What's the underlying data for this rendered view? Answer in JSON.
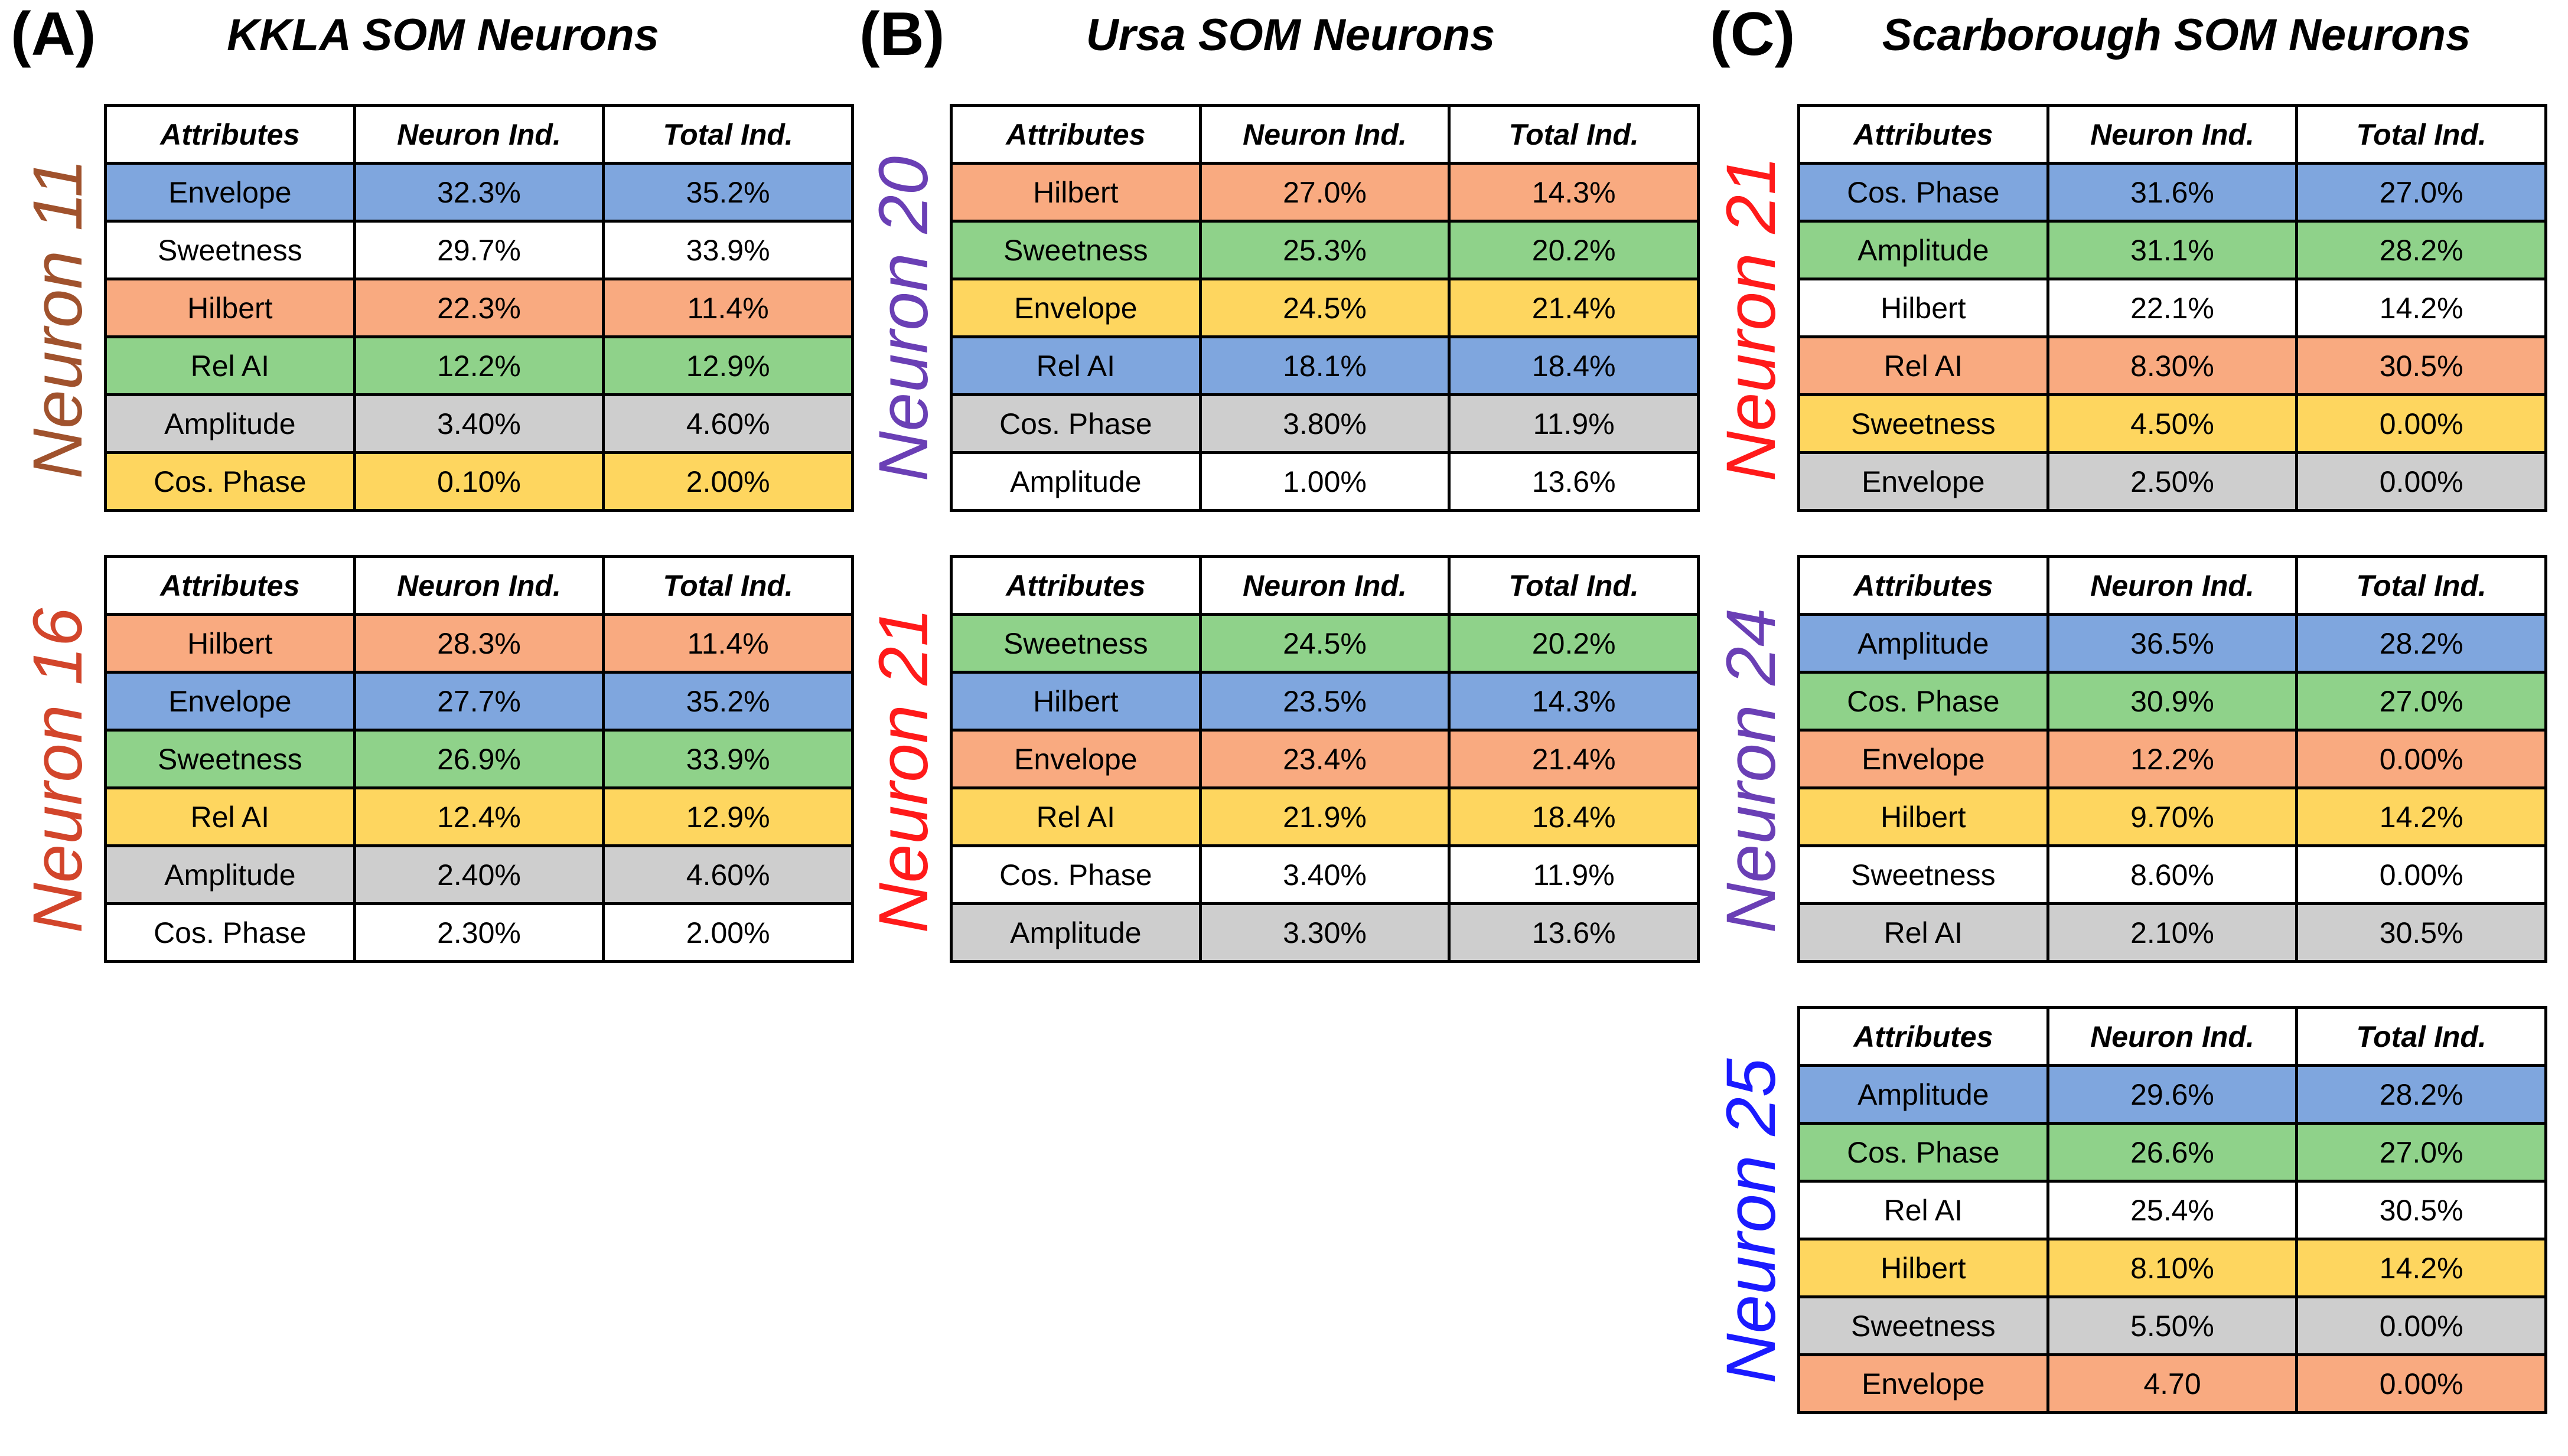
{
  "colors": {
    "blue": "#7fa6de",
    "green": "#8fd28a",
    "orange": "#f9aa80",
    "yellow": "#fed65f",
    "gray": "#cecece",
    "white": "#ffffff"
  },
  "panels": [
    {
      "letter": "(A)",
      "title": "KKLA SOM Neurons",
      "tables": [
        {
          "neuron": "Neuron 11",
          "neuron_color": "#a0522d",
          "headers": [
            "Attributes",
            "Neuron Ind.",
            "Total Ind."
          ],
          "rows": [
            {
              "attribute": "Envelope",
              "neuron_ind": "32.3%",
              "total_ind": "35.2%",
              "color": "blue"
            },
            {
              "attribute": "Sweetness",
              "neuron_ind": "29.7%",
              "total_ind": "33.9%",
              "color": "white"
            },
            {
              "attribute": "Hilbert",
              "neuron_ind": "22.3%",
              "total_ind": "11.4%",
              "color": "orange"
            },
            {
              "attribute": "Rel AI",
              "neuron_ind": "12.2%",
              "total_ind": "12.9%",
              "color": "green"
            },
            {
              "attribute": "Amplitude",
              "neuron_ind": "3.40%",
              "total_ind": "4.60%",
              "color": "gray"
            },
            {
              "attribute": "Cos. Phase",
              "neuron_ind": "0.10%",
              "total_ind": "2.00%",
              "color": "yellow"
            }
          ]
        },
        {
          "neuron": "Neuron 16",
          "neuron_color": "#d2452b",
          "headers": [
            "Attributes",
            "Neuron Ind.",
            "Total Ind."
          ],
          "rows": [
            {
              "attribute": "Hilbert",
              "neuron_ind": "28.3%",
              "total_ind": "11.4%",
              "color": "orange"
            },
            {
              "attribute": "Envelope",
              "neuron_ind": "27.7%",
              "total_ind": "35.2%",
              "color": "blue"
            },
            {
              "attribute": "Sweetness",
              "neuron_ind": "26.9%",
              "total_ind": "33.9%",
              "color": "green"
            },
            {
              "attribute": "Rel AI",
              "neuron_ind": "12.4%",
              "total_ind": "12.9%",
              "color": "yellow"
            },
            {
              "attribute": "Amplitude",
              "neuron_ind": "2.40%",
              "total_ind": "4.60%",
              "color": "gray"
            },
            {
              "attribute": "Cos. Phase",
              "neuron_ind": "2.30%",
              "total_ind": "2.00%",
              "color": "white"
            }
          ]
        }
      ]
    },
    {
      "letter": "(B)",
      "title": "Ursa SOM Neurons",
      "tables": [
        {
          "neuron": "Neuron 20",
          "neuron_color": "#6a3fb5",
          "headers": [
            "Attributes",
            "Neuron Ind.",
            "Total Ind."
          ],
          "rows": [
            {
              "attribute": "Hilbert",
              "neuron_ind": "27.0%",
              "total_ind": "14.3%",
              "color": "orange"
            },
            {
              "attribute": "Sweetness",
              "neuron_ind": "25.3%",
              "total_ind": "20.2%",
              "color": "green"
            },
            {
              "attribute": "Envelope",
              "neuron_ind": "24.5%",
              "total_ind": "21.4%",
              "color": "yellow"
            },
            {
              "attribute": "Rel AI",
              "neuron_ind": "18.1%",
              "total_ind": "18.4%",
              "color": "blue"
            },
            {
              "attribute": "Cos. Phase",
              "neuron_ind": "3.80%",
              "total_ind": "11.9%",
              "color": "gray"
            },
            {
              "attribute": "Amplitude",
              "neuron_ind": "1.00%",
              "total_ind": "13.6%",
              "color": "white"
            }
          ]
        },
        {
          "neuron": "Neuron 21",
          "neuron_color": "#ff1a1a",
          "headers": [
            "Attributes",
            "Neuron Ind.",
            "Total Ind."
          ],
          "rows": [
            {
              "attribute": "Sweetness",
              "neuron_ind": "24.5%",
              "total_ind": "20.2%",
              "color": "green"
            },
            {
              "attribute": "Hilbert",
              "neuron_ind": "23.5%",
              "total_ind": "14.3%",
              "color": "blue"
            },
            {
              "attribute": "Envelope",
              "neuron_ind": "23.4%",
              "total_ind": "21.4%",
              "color": "orange"
            },
            {
              "attribute": "Rel AI",
              "neuron_ind": "21.9%",
              "total_ind": "18.4%",
              "color": "yellow"
            },
            {
              "attribute": "Cos. Phase",
              "neuron_ind": "3.40%",
              "total_ind": "11.9%",
              "color": "white"
            },
            {
              "attribute": "Amplitude",
              "neuron_ind": "3.30%",
              "total_ind": "13.6%",
              "color": "gray"
            }
          ]
        }
      ]
    },
    {
      "letter": "(C)",
      "title": "Scarborough SOM Neurons",
      "tables": [
        {
          "neuron": "Neuron 21",
          "neuron_color": "#ff1a1a",
          "headers": [
            "Attributes",
            "Neuron Ind.",
            "Total Ind."
          ],
          "rows": [
            {
              "attribute": "Cos. Phase",
              "neuron_ind": "31.6%",
              "total_ind": "27.0%",
              "color": "blue"
            },
            {
              "attribute": "Amplitude",
              "neuron_ind": "31.1%",
              "total_ind": "28.2%",
              "color": "green"
            },
            {
              "attribute": "Hilbert",
              "neuron_ind": "22.1%",
              "total_ind": "14.2%",
              "color": "white"
            },
            {
              "attribute": "Rel AI",
              "neuron_ind": "8.30%",
              "total_ind": "30.5%",
              "color": "orange"
            },
            {
              "attribute": "Sweetness",
              "neuron_ind": "4.50%",
              "total_ind": "0.00%",
              "color": "yellow"
            },
            {
              "attribute": "Envelope",
              "neuron_ind": "2.50%",
              "total_ind": "0.00%",
              "color": "gray"
            }
          ]
        },
        {
          "neuron": "Neuron 24",
          "neuron_color": "#6a3fb5",
          "headers": [
            "Attributes",
            "Neuron Ind.",
            "Total Ind."
          ],
          "rows": [
            {
              "attribute": "Amplitude",
              "neuron_ind": "36.5%",
              "total_ind": "28.2%",
              "color": "blue"
            },
            {
              "attribute": "Cos. Phase",
              "neuron_ind": "30.9%",
              "total_ind": "27.0%",
              "color": "green"
            },
            {
              "attribute": "Envelope",
              "neuron_ind": "12.2%",
              "total_ind": "0.00%",
              "color": "orange"
            },
            {
              "attribute": "Hilbert",
              "neuron_ind": "9.70%",
              "total_ind": "14.2%",
              "color": "yellow"
            },
            {
              "attribute": "Sweetness",
              "neuron_ind": "8.60%",
              "total_ind": "0.00%",
              "color": "white"
            },
            {
              "attribute": "Rel AI",
              "neuron_ind": "2.10%",
              "total_ind": "30.5%",
              "color": "gray"
            }
          ]
        },
        {
          "neuron": "Neuron 25",
          "neuron_color": "#1a1aff",
          "headers": [
            "Attributes",
            "Neuron Ind.",
            "Total Ind."
          ],
          "rows": [
            {
              "attribute": "Amplitude",
              "neuron_ind": "29.6%",
              "total_ind": "28.2%",
              "color": "blue"
            },
            {
              "attribute": "Cos. Phase",
              "neuron_ind": "26.6%",
              "total_ind": "27.0%",
              "color": "green"
            },
            {
              "attribute": "Rel AI",
              "neuron_ind": "25.4%",
              "total_ind": "30.5%",
              "color": "white"
            },
            {
              "attribute": "Hilbert",
              "neuron_ind": "8.10%",
              "total_ind": "14.2%",
              "color": "yellow"
            },
            {
              "attribute": "Sweetness",
              "neuron_ind": "5.50%",
              "total_ind": "0.00%",
              "color": "gray"
            },
            {
              "attribute": "Envelope",
              "neuron_ind": "4.70",
              "total_ind": "0.00%",
              "color": "orange"
            }
          ]
        }
      ]
    }
  ]
}
